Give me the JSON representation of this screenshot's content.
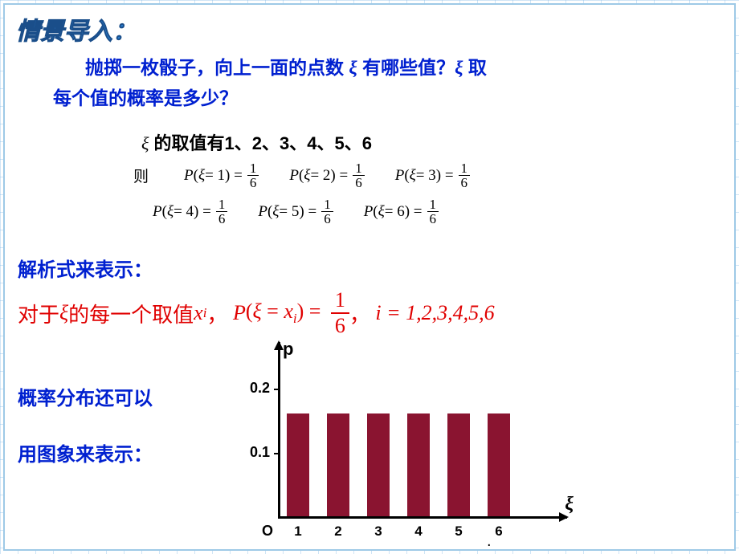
{
  "title": "情景导入：",
  "question_line1": "抛掷一枚骰子，向上一面的点数 ",
  "question_mid": " 有哪些值？",
  "question_tail": " 取",
  "question_line2": "每个值的概率是多少？",
  "xi": "ξ",
  "values_prefix": " 的取值有",
  "values_list": "1、2、3、4、5、6",
  "then": "则",
  "prob": [
    {
      "k": "1"
    },
    {
      "k": "2"
    },
    {
      "k": "3"
    },
    {
      "k": "4"
    },
    {
      "k": "5"
    },
    {
      "k": "6"
    }
  ],
  "frac_n": "1",
  "frac_d": "6",
  "section1": "解析式来表示：",
  "section2": "概率分布还可以",
  "section3": "用图象来表示：",
  "formula": {
    "p1": "对于",
    "p2": "的每一个取值",
    "x": "x",
    "sub_i": "i",
    "p3": "，",
    "P": "P",
    "eq": "(ξ = x",
    "eq2": ") =",
    "p4": "，",
    "i_eq": "i = 1,2,3,4,5,6"
  },
  "chart": {
    "type": "bar",
    "p_label": "p",
    "o_label": "O",
    "xi_label": "ξ",
    "yticks": [
      {
        "label": "0.1",
        "pos": 80
      },
      {
        "label": "0.2",
        "pos": 160
      }
    ],
    "bars": [
      {
        "x": 1,
        "h": 128
      },
      {
        "x": 2,
        "h": 128
      },
      {
        "x": 3,
        "h": 128
      },
      {
        "x": 4,
        "h": 128
      },
      {
        "x": 5,
        "h": 128
      },
      {
        "x": 6,
        "h": 128
      }
    ],
    "bar_color": "#8a1430",
    "x_spacing": 50,
    "x_start": 85
  }
}
